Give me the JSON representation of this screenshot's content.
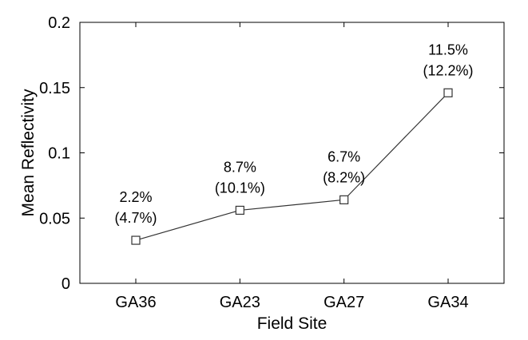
{
  "chart_data": {
    "type": "line",
    "title": "",
    "xlabel": "Field Site",
    "ylabel": "Mean Reflectivity",
    "categories": [
      "GA36",
      "GA23",
      "GA27",
      "GA34"
    ],
    "ylim": [
      0,
      0.2
    ],
    "yticks": [
      {
        "value": 0,
        "label": "0"
      },
      {
        "value": 0.05,
        "label": "0.05"
      },
      {
        "value": 0.1,
        "label": "0.1"
      },
      {
        "value": 0.15,
        "label": "0.15"
      },
      {
        "value": 0.2,
        "label": "0.2"
      }
    ],
    "grid": false,
    "legend": "none",
    "marker": "square",
    "series": [
      {
        "values": [
          0.033,
          0.056,
          0.064,
          0.146
        ]
      }
    ],
    "annotations": [
      {
        "category": "GA36",
        "line1": "2.2%",
        "line2": "(4.7%)"
      },
      {
        "category": "GA23",
        "line1": "8.7%",
        "line2": "(10.1%)"
      },
      {
        "category": "GA27",
        "line1": "6.7%",
        "line2": "(8.2%)"
      },
      {
        "category": "GA34",
        "line1": "11.5%",
        "line2": "(12.2%)"
      }
    ],
    "colors": {
      "line": "#333333",
      "axis": "#000000"
    }
  }
}
